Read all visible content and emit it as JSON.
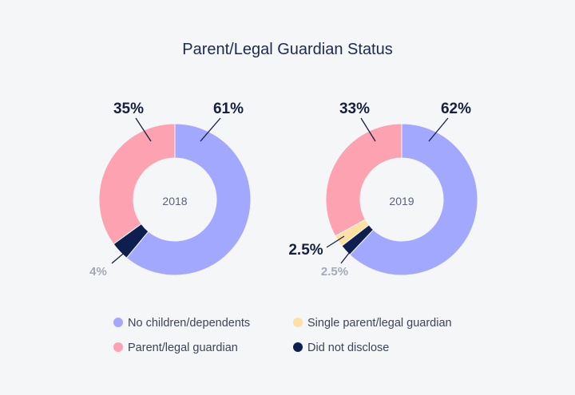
{
  "chart_data": {
    "type": "pie",
    "variant": "donut",
    "title": "Parent/Legal Guardian Status",
    "categories": [
      "No children/dependents",
      "Single parent/legal guardian",
      "Parent/legal guardian",
      "Did not disclose"
    ],
    "colors": {
      "No children/dependents": "#a1a8fd",
      "Single parent/legal guardian": "#fde0a2",
      "Parent/legal guardian": "#fca2b0",
      "Did not disclose": "#0d1f4e"
    },
    "charts": [
      {
        "label": "2018",
        "slices": [
          {
            "category": "No children/dependents",
            "value": 61,
            "label": "61%"
          },
          {
            "category": "Did not disclose",
            "value": 4,
            "label": "4%"
          },
          {
            "category": "Parent/legal guardian",
            "value": 35,
            "label": "35%"
          }
        ]
      },
      {
        "label": "2019",
        "slices": [
          {
            "category": "No children/dependents",
            "value": 62,
            "label": "62%"
          },
          {
            "category": "Did not disclose",
            "value": 2.5,
            "label": "2.5%"
          },
          {
            "category": "Single parent/legal guardian",
            "value": 2.5,
            "label": "2.5%"
          },
          {
            "category": "Parent/legal guardian",
            "value": 33,
            "label": "33%"
          }
        ]
      }
    ],
    "legend": {
      "placement": "bottom",
      "items": [
        {
          "label": "No children/dependents",
          "color": "#a1a8fd"
        },
        {
          "label": "Single parent/legal guardian",
          "color": "#fde0a2"
        },
        {
          "label": "Parent/legal guardian",
          "color": "#fca2b0"
        },
        {
          "label": "Did not disclose",
          "color": "#0d1f4e"
        }
      ]
    }
  }
}
